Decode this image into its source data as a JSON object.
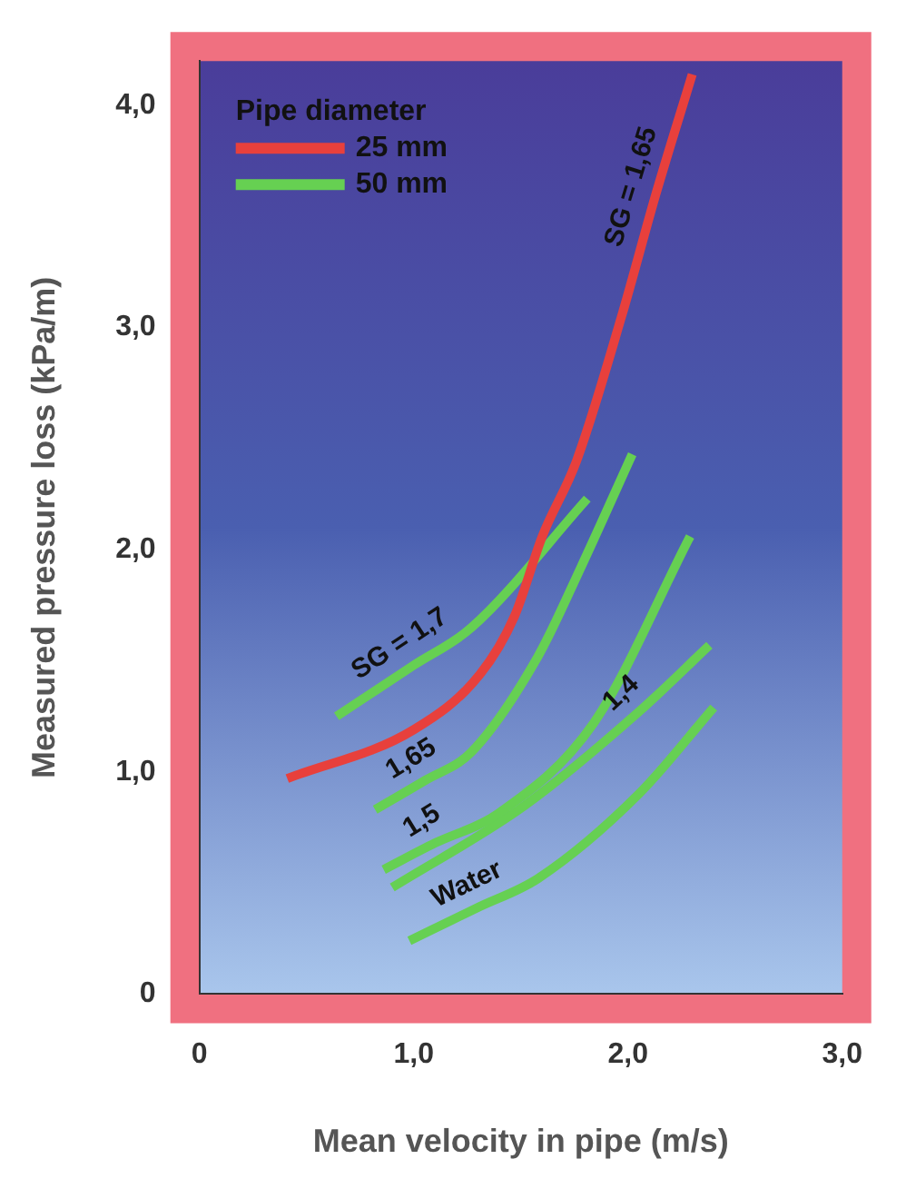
{
  "chart_data": {
    "type": "line",
    "xlabel": "Mean velocity in pipe (m/s)",
    "ylabel": "Measured pressure loss (kPa/m)",
    "legend_title": "Pipe diameter",
    "legend": "top left",
    "marker": "none",
    "line_style": "solid",
    "grid": false,
    "xlim": [
      0,
      3
    ],
    "ylim": [
      0,
      4.2
    ],
    "xticks": [
      0,
      {
        "value": 1,
        "label": "1,0"
      },
      {
        "value": 2,
        "label": "2,0"
      },
      {
        "value": 3,
        "label": "3,0"
      }
    ],
    "yticks": [
      0,
      {
        "value": 1,
        "label": "1,0"
      },
      {
        "value": 2,
        "label": "2,0"
      },
      {
        "value": 3,
        "label": "3,0"
      },
      {
        "value": 4,
        "label": "4,0"
      }
    ],
    "series": [
      {
        "name": "25 mm",
        "color": "#e8403c",
        "x": [
          0.41,
          1.0,
          1.31,
          1.47,
          1.6,
          1.76,
          1.97,
          2.13,
          2.3
        ],
        "values": [
          0.97,
          1.19,
          1.44,
          1.7,
          2.06,
          2.4,
          3.05,
          3.6,
          4.14
        ]
      },
      {
        "name": "50 mm",
        "color": "#66d052",
        "x": [
          0.64,
          1.0,
          1.27,
          1.81
        ],
        "values": [
          1.25,
          1.48,
          1.65,
          2.23
        ]
      },
      {
        "color": "#66d052",
        "x": [
          0.82,
          1.05,
          1.27,
          1.58,
          1.78,
          2.02
        ],
        "values": [
          0.83,
          0.96,
          1.09,
          1.52,
          1.92,
          2.43
        ]
      },
      {
        "color": "#66d052",
        "x": [
          0.86,
          1.1,
          1.39,
          1.84,
          2.29
        ],
        "values": [
          0.56,
          0.68,
          0.81,
          1.22,
          2.06
        ]
      },
      {
        "color": "#66d052",
        "x": [
          0.9,
          1.52,
          2.05,
          2.38
        ],
        "values": [
          0.48,
          0.85,
          1.27,
          1.57
        ]
      },
      {
        "color": "#66d052",
        "x": [
          0.98,
          1.3,
          1.58,
          2.05,
          2.4
        ],
        "values": [
          0.24,
          0.39,
          0.52,
          0.9,
          1.29
        ]
      }
    ],
    "annotations": [
      {
        "text": "SG = 1,65",
        "x": 2.13,
        "y": 3.6
      },
      {
        "text": "SG = 1,7",
        "x": 1.0,
        "y": 1.48
      },
      {
        "text": "1,65",
        "x": 1.05,
        "y": 0.96
      },
      {
        "text": "1,5",
        "x": 1.1,
        "y": 0.68
      },
      {
        "text": "1,4",
        "x": 2.05,
        "y": 1.27
      },
      {
        "text": "Water",
        "x": 1.3,
        "y": 0.39
      }
    ]
  }
}
